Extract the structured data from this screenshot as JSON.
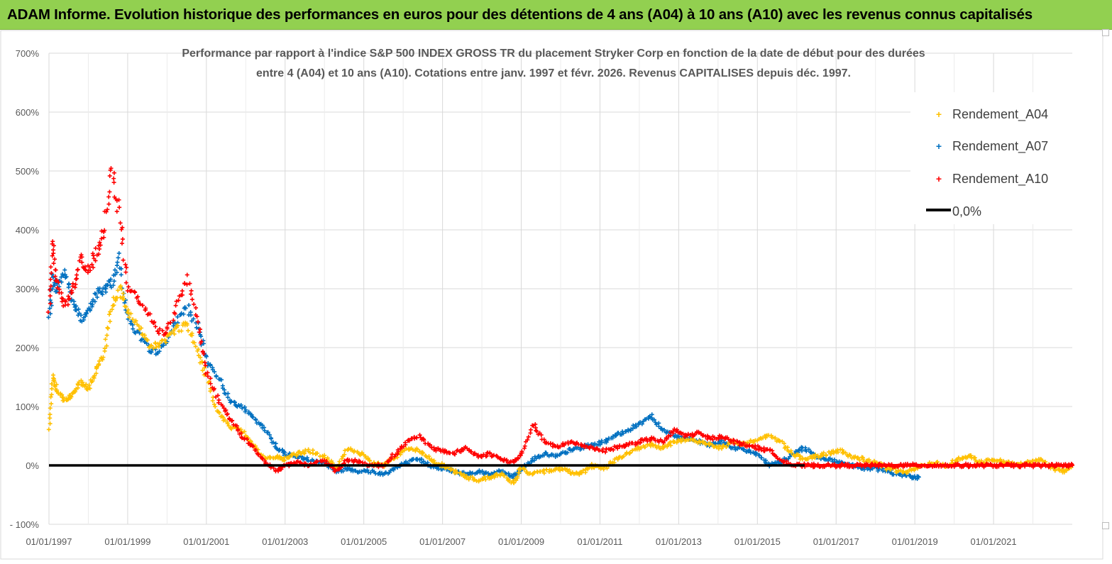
{
  "header": {
    "title": "ADAM Informe. Evolution historique des performances en euros pour des détentions de 4 ans (A04) à 10 ans (A10) avec les revenus connus capitalisés"
  },
  "colors": {
    "banner": "#92d050",
    "A04": "#ffc000",
    "A07": "#0070c0",
    "A10": "#ff0000",
    "zero_line": "#000000"
  },
  "chart_data": {
    "type": "scatter",
    "title_line1": "Performance par rapport à l'indice S&P 500 INDEX GROSS TR  du placement Stryker Corp en fonction de la date de début pour des durées",
    "title_line2": "entre 4 (A04) et 10 ans (A10).  Cotations entre janv. 1997 et févr. 2026. Revenus CAPITALISES depuis déc. 1997.",
    "xlabel": "",
    "ylabel": "",
    "x_range_years": [
      1997.0,
      2023.0
    ],
    "ylim": [
      -100,
      700
    ],
    "y_ticks": [
      -100,
      0,
      100,
      200,
      300,
      400,
      500,
      600,
      700
    ],
    "y_tick_labels": [
      "- 100%",
      "0%",
      "100%",
      "200%",
      "300%",
      "400%",
      "500%",
      "600%",
      "700%"
    ],
    "x_ticks": [
      1997.0,
      1999.0,
      2001.0,
      2003.0,
      2005.0,
      2007.0,
      2009.0,
      2011.0,
      2013.0,
      2015.0,
      2017.0,
      2019.0,
      2021.0
    ],
    "x_tick_labels": [
      "01/01/1997",
      "01/01/1999",
      "01/01/2001",
      "01/01/2003",
      "01/01/2005",
      "01/01/2007",
      "01/01/2009",
      "01/01/2011",
      "01/01/2013",
      "01/01/2015",
      "01/01/2017",
      "01/01/2019",
      "01/01/2021"
    ],
    "legend_position": "top-right",
    "series": [
      {
        "name": "Rendement_A04",
        "color": "#ffc000",
        "x": [
          1997.0,
          1997.1,
          1997.2,
          1997.4,
          1997.6,
          1997.8,
          1998.0,
          1998.2,
          1998.4,
          1998.6,
          1998.8,
          1999.0,
          1999.3,
          1999.6,
          1999.9,
          2000.2,
          2000.5,
          2000.8,
          2001.0,
          2001.3,
          2001.6,
          2001.9,
          2002.2,
          2002.5,
          2002.8,
          2003.0,
          2003.3,
          2003.6,
          2004.0,
          2004.3,
          2004.6,
          2004.9,
          2005.2,
          2005.5,
          2005.8,
          2006.1,
          2006.4,
          2006.7,
          2007.0,
          2007.3,
          2007.6,
          2007.9,
          2008.2,
          2008.5,
          2008.8,
          2009.0,
          2009.3,
          2009.6,
          2009.9,
          2010.2,
          2010.5,
          2010.8,
          2011.1,
          2011.4,
          2011.7,
          2012.0,
          2012.3,
          2012.6,
          2012.9,
          2013.2,
          2013.5,
          2013.8,
          2014.1,
          2014.4,
          2014.7,
          2015.0,
          2015.3,
          2015.6,
          2015.9,
          2016.2,
          2016.5,
          2016.8,
          2017.1,
          2017.4,
          2017.7,
          2018.0,
          2018.3,
          2018.6,
          2018.9,
          2019.2,
          2019.5,
          2019.8,
          2020.1,
          2020.4,
          2020.7,
          2021.0,
          2021.3,
          2021.6,
          2021.9,
          2022.2,
          2022.5,
          2022.8,
          2023.0
        ],
        "values": [
          60,
          150,
          130,
          110,
          120,
          140,
          130,
          160,
          190,
          270,
          300,
          260,
          230,
          200,
          210,
          230,
          240,
          190,
          150,
          90,
          65,
          60,
          35,
          10,
          15,
          10,
          20,
          25,
          15,
          -5,
          30,
          20,
          5,
          0,
          15,
          30,
          25,
          10,
          0,
          -10,
          -20,
          -25,
          -20,
          -15,
          -30,
          -5,
          -15,
          -10,
          -5,
          -10,
          -15,
          0,
          -5,
          10,
          20,
          30,
          35,
          30,
          40,
          45,
          40,
          35,
          30,
          40,
          35,
          45,
          50,
          40,
          20,
          10,
          15,
          20,
          25,
          15,
          10,
          5,
          -5,
          -10,
          -10,
          0,
          5,
          0,
          10,
          15,
          5,
          10,
          5,
          0,
          5,
          10,
          -5,
          -10,
          0
        ]
      },
      {
        "name": "Rendement_A07",
        "color": "#0070c0",
        "x": [
          1997.0,
          1997.1,
          1997.2,
          1997.4,
          1997.6,
          1997.8,
          1998.0,
          1998.2,
          1998.4,
          1998.6,
          1998.8,
          1999.0,
          1999.3,
          1999.6,
          1999.9,
          2000.2,
          2000.5,
          2000.8,
          2001.0,
          2001.3,
          2001.6,
          2001.9,
          2002.2,
          2002.5,
          2002.8,
          2003.0,
          2003.3,
          2003.6,
          2004.0,
          2004.3,
          2004.6,
          2004.9,
          2005.2,
          2005.5,
          2005.8,
          2006.1,
          2006.4,
          2006.7,
          2007.0,
          2007.3,
          2007.6,
          2007.9,
          2008.2,
          2008.5,
          2008.8,
          2009.0,
          2009.3,
          2009.6,
          2009.9,
          2010.2,
          2010.5,
          2010.8,
          2011.1,
          2011.4,
          2011.7,
          2012.0,
          2012.3,
          2012.6,
          2012.9,
          2013.2,
          2013.5,
          2013.8,
          2014.1,
          2014.4,
          2014.7,
          2015.0,
          2015.3,
          2015.6,
          2015.9,
          2016.2,
          2016.5,
          2016.8,
          2017.1,
          2017.4,
          2017.7,
          2018.0,
          2018.3,
          2018.6,
          2018.9,
          2019.1
        ],
        "values": [
          250,
          320,
          300,
          330,
          280,
          250,
          260,
          290,
          300,
          310,
          350,
          250,
          220,
          190,
          200,
          240,
          270,
          230,
          180,
          150,
          110,
          100,
          80,
          60,
          30,
          20,
          15,
          10,
          5,
          -10,
          -5,
          -10,
          -10,
          -15,
          -5,
          5,
          10,
          0,
          -5,
          -10,
          -15,
          -10,
          -15,
          -10,
          -20,
          -5,
          10,
          20,
          15,
          25,
          30,
          35,
          40,
          50,
          60,
          70,
          85,
          60,
          50,
          45,
          40,
          35,
          40,
          30,
          25,
          20,
          0,
          5,
          20,
          30,
          15,
          10,
          5,
          0,
          -5,
          -5,
          -10,
          -15,
          -20,
          -20
        ]
      },
      {
        "name": "Rendement_A10",
        "color": "#ff0000",
        "x": [
          1997.0,
          1997.1,
          1997.2,
          1997.4,
          1997.6,
          1997.8,
          1998.0,
          1998.2,
          1998.4,
          1998.6,
          1998.8,
          1999.0,
          1999.3,
          1999.6,
          1999.9,
          2000.2,
          2000.5,
          2000.8,
          2001.0,
          2001.3,
          2001.6,
          2001.9,
          2002.2,
          2002.5,
          2002.8,
          2003.0,
          2003.3,
          2003.6,
          2004.0,
          2004.3,
          2004.6,
          2004.9,
          2005.2,
          2005.5,
          2005.8,
          2006.1,
          2006.4,
          2006.7,
          2007.0,
          2007.3,
          2007.6,
          2007.9,
          2008.2,
          2008.5,
          2008.8,
          2009.0,
          2009.3,
          2009.6,
          2009.9,
          2010.2,
          2010.5,
          2010.8,
          2011.1,
          2011.4,
          2011.7,
          2012.0,
          2012.3,
          2012.6,
          2012.9,
          2013.2,
          2013.5,
          2013.8,
          2014.1,
          2014.4,
          2014.7,
          2015.0,
          2015.3,
          2015.6,
          2015.9,
          2016.2,
          2016.5,
          2016.8,
          2017.1,
          2017.4,
          2017.7,
          2018.0,
          2018.3,
          2018.6,
          2018.9,
          2019.2,
          2019.5,
          2019.8,
          2020.1,
          2020.4,
          2020.7,
          2021.0,
          2021.3,
          2021.6,
          2021.9,
          2022.2,
          2022.5,
          2022.8,
          2023.0
        ],
        "values": [
          260,
          380,
          310,
          270,
          300,
          350,
          330,
          360,
          400,
          500,
          420,
          300,
          280,
          250,
          220,
          260,
          320,
          240,
          160,
          110,
          80,
          50,
          30,
          5,
          -10,
          0,
          5,
          0,
          10,
          -10,
          10,
          5,
          0,
          0,
          20,
          40,
          50,
          30,
          25,
          20,
          30,
          15,
          20,
          10,
          5,
          20,
          70,
          40,
          30,
          40,
          35,
          30,
          25,
          30,
          35,
          40,
          45,
          40,
          60,
          50,
          55,
          45,
          50,
          40,
          35,
          30,
          25,
          10,
          0,
          0,
          0,
          0,
          0,
          0,
          0,
          0,
          0,
          0,
          0,
          0,
          0,
          0,
          0,
          0,
          0,
          0,
          0,
          0,
          0,
          0,
          0,
          0,
          0
        ]
      },
      {
        "name": "0,0%",
        "color": "#000000",
        "x": [
          1997.0,
          2023.0
        ],
        "values": [
          0,
          0
        ]
      }
    ]
  }
}
